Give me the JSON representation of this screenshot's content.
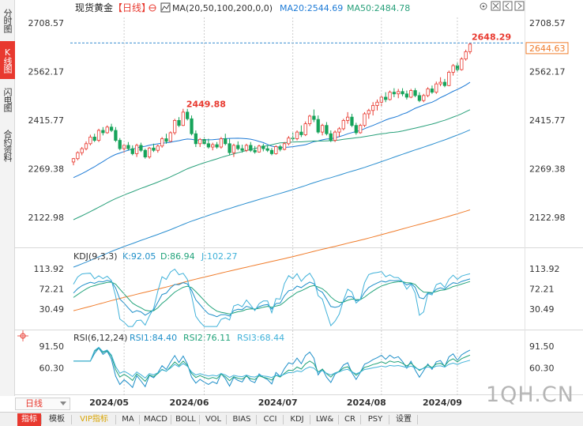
{
  "sidebar": {
    "tabs": [
      {
        "label": "分时图",
        "active": false
      },
      {
        "label": "K线图",
        "active": true
      },
      {
        "label": "闪电图",
        "active": false
      },
      {
        "label": "合约资料",
        "active": false
      }
    ]
  },
  "header": {
    "symbol": "现货黄金",
    "period_tag": "【日线】",
    "ma_label": "MA(20,50,100,200,0,0)",
    "ma20_label": "MA20:2544.69",
    "ma50_label": "MA50:2484.78",
    "icons": [
      "settings-icon",
      "close-icon",
      "prev-icon",
      "next-icon"
    ]
  },
  "price_axis": {
    "labels": [
      "2708.57",
      "2562.17",
      "2415.77",
      "2269.38",
      "2122.98"
    ],
    "current_price": "2644.63",
    "high_label": "2648.29",
    "peak_label": "2449.88"
  },
  "kdj": {
    "title": "KDJ(9,3,3)",
    "k_label": "K:92.05",
    "d_label": "D:86.94",
    "j_label": "J:102.27",
    "axis": [
      "113.92",
      "72.21",
      "30.49"
    ]
  },
  "rsi": {
    "title": "RSI(6,12,24)",
    "rsi1_label": "RSI1:84.40",
    "rsi2_label": "RSI2:76.11",
    "rsi3_label": "RSI3:68.44",
    "axis": [
      "91.50",
      "60.30"
    ]
  },
  "x_axis": [
    "2024/05",
    "2024/06",
    "2024/07",
    "2024/08",
    "2024/09"
  ],
  "period_selector": "日线",
  "watermark": "1QH.CN",
  "bottom_bar": [
    {
      "label": "指标",
      "active": true
    },
    {
      "label": "模板"
    },
    {
      "label": "VIP指标",
      "vip": true
    },
    {
      "label": "MA"
    },
    {
      "label": "MACD"
    },
    {
      "label": "BOLL"
    },
    {
      "label": "VOL"
    },
    {
      "label": "BIAS"
    },
    {
      "label": "CCI"
    },
    {
      "label": "KDJ"
    },
    {
      "label": "LW&"
    },
    {
      "label": "CR"
    },
    {
      "label": "PSY"
    },
    {
      "label": "设置"
    }
  ],
  "colors": {
    "up": "#e8392f",
    "down": "#16a35a",
    "ma20": "#1e7bd6",
    "ma50": "#28a07a",
    "ma100": "#2b8fd0",
    "ma200": "#f07c2b",
    "k": "#1e8fc9",
    "d": "#21a37a",
    "j": "#3fb1d9",
    "dashed_price": "#3a8fd0"
  },
  "chart_data": {
    "type": "candlestick",
    "title": "现货黄金 日线",
    "ylim": [
      2040,
      2730
    ],
    "y_ticks": [
      2708.57,
      2562.17,
      2415.77,
      2269.38,
      2122.98
    ],
    "x_labels": [
      "2024/05",
      "2024/06",
      "2024/07",
      "2024/08",
      "2024/09"
    ],
    "candles": [
      {
        "o": 2290,
        "h": 2302,
        "l": 2280,
        "c": 2300
      },
      {
        "o": 2300,
        "h": 2322,
        "l": 2295,
        "c": 2318
      },
      {
        "o": 2318,
        "h": 2335,
        "l": 2310,
        "c": 2330
      },
      {
        "o": 2330,
        "h": 2352,
        "l": 2325,
        "c": 2345
      },
      {
        "o": 2345,
        "h": 2372,
        "l": 2340,
        "c": 2365
      },
      {
        "o": 2365,
        "h": 2375,
        "l": 2350,
        "c": 2355
      },
      {
        "o": 2355,
        "h": 2390,
        "l": 2350,
        "c": 2385
      },
      {
        "o": 2385,
        "h": 2395,
        "l": 2370,
        "c": 2378
      },
      {
        "o": 2378,
        "h": 2400,
        "l": 2375,
        "c": 2395
      },
      {
        "o": 2395,
        "h": 2405,
        "l": 2380,
        "c": 2385
      },
      {
        "o": 2385,
        "h": 2395,
        "l": 2350,
        "c": 2355
      },
      {
        "o": 2355,
        "h": 2362,
        "l": 2325,
        "c": 2330
      },
      {
        "o": 2330,
        "h": 2345,
        "l": 2318,
        "c": 2340
      },
      {
        "o": 2340,
        "h": 2350,
        "l": 2325,
        "c": 2330
      },
      {
        "o": 2330,
        "h": 2340,
        "l": 2310,
        "c": 2315
      },
      {
        "o": 2315,
        "h": 2345,
        "l": 2305,
        "c": 2340
      },
      {
        "o": 2340,
        "h": 2348,
        "l": 2320,
        "c": 2325
      },
      {
        "o": 2325,
        "h": 2330,
        "l": 2300,
        "c": 2305
      },
      {
        "o": 2305,
        "h": 2335,
        "l": 2300,
        "c": 2332
      },
      {
        "o": 2332,
        "h": 2345,
        "l": 2320,
        "c": 2325
      },
      {
        "o": 2325,
        "h": 2342,
        "l": 2318,
        "c": 2338
      },
      {
        "o": 2338,
        "h": 2365,
        "l": 2333,
        "c": 2360
      },
      {
        "o": 2360,
        "h": 2375,
        "l": 2345,
        "c": 2352
      },
      {
        "o": 2352,
        "h": 2382,
        "l": 2350,
        "c": 2378
      },
      {
        "o": 2378,
        "h": 2420,
        "l": 2372,
        "c": 2415
      },
      {
        "o": 2415,
        "h": 2425,
        "l": 2395,
        "c": 2400
      },
      {
        "o": 2400,
        "h": 2450,
        "l": 2398,
        "c": 2440
      },
      {
        "o": 2440,
        "h": 2449.88,
        "l": 2415,
        "c": 2420
      },
      {
        "o": 2420,
        "h": 2430,
        "l": 2370,
        "c": 2375
      },
      {
        "o": 2375,
        "h": 2385,
        "l": 2335,
        "c": 2345
      },
      {
        "o": 2345,
        "h": 2362,
        "l": 2335,
        "c": 2358
      },
      {
        "o": 2358,
        "h": 2365,
        "l": 2340,
        "c": 2345
      },
      {
        "o": 2345,
        "h": 2360,
        "l": 2330,
        "c": 2335
      },
      {
        "o": 2335,
        "h": 2348,
        "l": 2325,
        "c": 2342
      },
      {
        "o": 2342,
        "h": 2350,
        "l": 2330,
        "c": 2335
      },
      {
        "o": 2335,
        "h": 2365,
        "l": 2330,
        "c": 2360
      },
      {
        "o": 2360,
        "h": 2375,
        "l": 2340,
        "c": 2345
      },
      {
        "o": 2345,
        "h": 2360,
        "l": 2310,
        "c": 2318
      },
      {
        "o": 2318,
        "h": 2345,
        "l": 2305,
        "c": 2340
      },
      {
        "o": 2340,
        "h": 2352,
        "l": 2325,
        "c": 2330
      },
      {
        "o": 2330,
        "h": 2342,
        "l": 2318,
        "c": 2325
      },
      {
        "o": 2325,
        "h": 2345,
        "l": 2320,
        "c": 2340
      },
      {
        "o": 2340,
        "h": 2350,
        "l": 2320,
        "c": 2325
      },
      {
        "o": 2325,
        "h": 2338,
        "l": 2315,
        "c": 2320
      },
      {
        "o": 2320,
        "h": 2342,
        "l": 2318,
        "c": 2338
      },
      {
        "o": 2338,
        "h": 2345,
        "l": 2322,
        "c": 2330
      },
      {
        "o": 2330,
        "h": 2340,
        "l": 2320,
        "c": 2325
      },
      {
        "o": 2325,
        "h": 2332,
        "l": 2310,
        "c": 2315
      },
      {
        "o": 2315,
        "h": 2340,
        "l": 2312,
        "c": 2336
      },
      {
        "o": 2336,
        "h": 2342,
        "l": 2322,
        "c": 2328
      },
      {
        "o": 2328,
        "h": 2350,
        "l": 2325,
        "c": 2345
      },
      {
        "o": 2345,
        "h": 2368,
        "l": 2340,
        "c": 2362
      },
      {
        "o": 2362,
        "h": 2378,
        "l": 2352,
        "c": 2360
      },
      {
        "o": 2360,
        "h": 2385,
        "l": 2355,
        "c": 2380
      },
      {
        "o": 2380,
        "h": 2400,
        "l": 2365,
        "c": 2372
      },
      {
        "o": 2372,
        "h": 2412,
        "l": 2368,
        "c": 2405
      },
      {
        "o": 2405,
        "h": 2432,
        "l": 2398,
        "c": 2428
      },
      {
        "o": 2428,
        "h": 2448,
        "l": 2410,
        "c": 2418
      },
      {
        "o": 2418,
        "h": 2430,
        "l": 2375,
        "c": 2380
      },
      {
        "o": 2380,
        "h": 2405,
        "l": 2370,
        "c": 2400
      },
      {
        "o": 2400,
        "h": 2410,
        "l": 2370,
        "c": 2375
      },
      {
        "o": 2375,
        "h": 2385,
        "l": 2350,
        "c": 2355
      },
      {
        "o": 2355,
        "h": 2385,
        "l": 2350,
        "c": 2380
      },
      {
        "o": 2380,
        "h": 2395,
        "l": 2365,
        "c": 2390
      },
      {
        "o": 2390,
        "h": 2420,
        "l": 2385,
        "c": 2415
      },
      {
        "o": 2415,
        "h": 2440,
        "l": 2405,
        "c": 2425
      },
      {
        "o": 2425,
        "h": 2435,
        "l": 2395,
        "c": 2400
      },
      {
        "o": 2400,
        "h": 2408,
        "l": 2372,
        "c": 2378
      },
      {
        "o": 2378,
        "h": 2405,
        "l": 2375,
        "c": 2400
      },
      {
        "o": 2400,
        "h": 2440,
        "l": 2395,
        "c": 2435
      },
      {
        "o": 2435,
        "h": 2450,
        "l": 2420,
        "c": 2445
      },
      {
        "o": 2445,
        "h": 2470,
        "l": 2430,
        "c": 2460
      },
      {
        "o": 2460,
        "h": 2478,
        "l": 2445,
        "c": 2470
      },
      {
        "o": 2470,
        "h": 2490,
        "l": 2458,
        "c": 2485
      },
      {
        "o": 2485,
        "h": 2500,
        "l": 2470,
        "c": 2478
      },
      {
        "o": 2478,
        "h": 2505,
        "l": 2475,
        "c": 2500
      },
      {
        "o": 2500,
        "h": 2512,
        "l": 2485,
        "c": 2495
      },
      {
        "o": 2495,
        "h": 2510,
        "l": 2482,
        "c": 2502
      },
      {
        "o": 2502,
        "h": 2512,
        "l": 2488,
        "c": 2495
      },
      {
        "o": 2495,
        "h": 2505,
        "l": 2478,
        "c": 2485
      },
      {
        "o": 2485,
        "h": 2510,
        "l": 2482,
        "c": 2505
      },
      {
        "o": 2505,
        "h": 2512,
        "l": 2485,
        "c": 2490
      },
      {
        "o": 2490,
        "h": 2500,
        "l": 2470,
        "c": 2475
      },
      {
        "o": 2475,
        "h": 2495,
        "l": 2470,
        "c": 2490
      },
      {
        "o": 2490,
        "h": 2515,
        "l": 2485,
        "c": 2510
      },
      {
        "o": 2510,
        "h": 2520,
        "l": 2495,
        "c": 2500
      },
      {
        "o": 2500,
        "h": 2532,
        "l": 2495,
        "c": 2525
      },
      {
        "o": 2525,
        "h": 2545,
        "l": 2518,
        "c": 2530
      },
      {
        "o": 2530,
        "h": 2540,
        "l": 2515,
        "c": 2520
      },
      {
        "o": 2520,
        "h": 2565,
        "l": 2518,
        "c": 2560
      },
      {
        "o": 2560,
        "h": 2585,
        "l": 2550,
        "c": 2580
      },
      {
        "o": 2580,
        "h": 2592,
        "l": 2560,
        "c": 2568
      },
      {
        "o": 2568,
        "h": 2605,
        "l": 2565,
        "c": 2600
      },
      {
        "o": 2600,
        "h": 2628,
        "l": 2595,
        "c": 2622
      },
      {
        "o": 2622,
        "h": 2648.29,
        "l": 2615,
        "c": 2644.63
      }
    ]
  }
}
